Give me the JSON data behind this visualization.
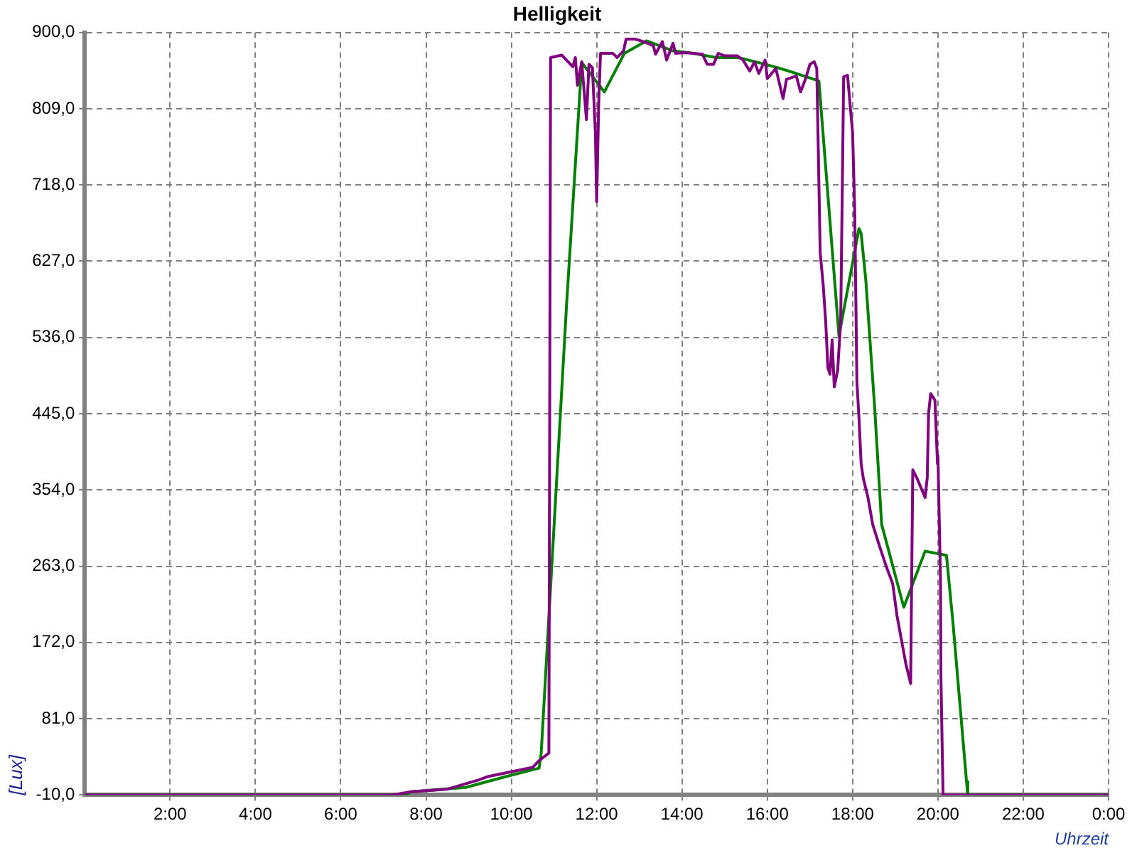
{
  "chart_data": {
    "type": "line",
    "title": "Helligkeit",
    "xlabel": "Uhrzeit",
    "ylabel": "[Lux]",
    "xlim": [
      0,
      24
    ],
    "xticks": [
      {
        "value": 2,
        "label": "2:00"
      },
      {
        "value": 4,
        "label": "4:00"
      },
      {
        "value": 6,
        "label": "6:00"
      },
      {
        "value": 8,
        "label": "8:00"
      },
      {
        "value": 10,
        "label": "10:00"
      },
      {
        "value": 12,
        "label": "12:00"
      },
      {
        "value": 14,
        "label": "14:00"
      },
      {
        "value": 16,
        "label": "16:00"
      },
      {
        "value": 18,
        "label": "18:00"
      },
      {
        "value": 20,
        "label": "20:00"
      },
      {
        "value": 22,
        "label": "22:00"
      },
      {
        "value": 24,
        "label": "0:00"
      }
    ],
    "ylim": [
      -10,
      900
    ],
    "yticks": [
      {
        "value": -10,
        "label": "-10,0"
      },
      {
        "value": 81,
        "label": "81,0"
      },
      {
        "value": 172,
        "label": "172,0"
      },
      {
        "value": 263,
        "label": "263,0"
      },
      {
        "value": 354,
        "label": "354,0"
      },
      {
        "value": 445,
        "label": "445,0"
      },
      {
        "value": 536,
        "label": "536,0"
      },
      {
        "value": 627,
        "label": "627,0"
      },
      {
        "value": 718,
        "label": "718,0"
      },
      {
        "value": 809,
        "label": "809,0"
      },
      {
        "value": 900,
        "label": "900,0"
      }
    ],
    "grid": true,
    "legend": false,
    "marker": "none",
    "line_style": "solid",
    "series": [
      {
        "color": "#800080",
        "x": [
          0,
          7.2,
          7.66,
          8.5,
          9.24,
          9.45,
          10.5,
          10.65,
          10.88,
          10.92,
          11.18,
          11.44,
          11.5,
          11.55,
          11.65,
          11.76,
          11.82,
          11.9,
          11.97,
          12.0,
          12.05,
          12.09,
          12.38,
          12.48,
          12.63,
          12.69,
          12.9,
          13.1,
          13.33,
          13.38,
          13.54,
          13.64,
          13.79,
          13.85,
          14.06,
          14.48,
          14.59,
          14.74,
          14.85,
          15.0,
          15.3,
          15.43,
          15.59,
          15.7,
          15.8,
          15.95,
          16.0,
          16.2,
          16.37,
          16.45,
          16.68,
          16.78,
          16.9,
          17.0,
          17.1,
          17.16,
          17.24,
          17.31,
          17.37,
          17.42,
          17.47,
          17.52,
          17.57,
          17.65,
          17.72,
          17.79,
          17.88,
          18.0,
          18.05,
          18.1,
          18.15,
          18.2,
          18.25,
          18.36,
          18.47,
          18.63,
          18.78,
          18.94,
          19.04,
          19.25,
          19.36,
          19.41,
          19.5,
          19.7,
          19.75,
          19.78,
          19.83,
          19.93,
          19.99,
          20.0,
          20.06,
          20.07,
          20.12,
          24
        ],
        "values": [
          -10,
          -10,
          -6,
          -3,
          8,
          12,
          23,
          31,
          40,
          870,
          873,
          859,
          870,
          837,
          865,
          796,
          862,
          858,
          780,
          698,
          818,
          875,
          875,
          870,
          878,
          892,
          892,
          889,
          884,
          874,
          889,
          867,
          887,
          875,
          876,
          874,
          862,
          862,
          875,
          872,
          872,
          867,
          854,
          865,
          851,
          867,
          845,
          857,
          821,
          844,
          848,
          829,
          845,
          862,
          865,
          857,
          637,
          599,
          554,
          500,
          492,
          533,
          477,
          497,
          555,
          847,
          849,
          780,
          686,
          484,
          439,
          385,
          368,
          345,
          313,
          287,
          264,
          242,
          204,
          146,
          123,
          378,
          369,
          345,
          369,
          445,
          469,
          461,
          385,
          395,
          247,
          132,
          -10,
          -10
        ]
      },
      {
        "color": "#008000",
        "x": [
          0,
          7.5,
          7.66,
          8.93,
          9.87,
          10.65,
          10.7,
          11.29,
          11.65,
          12.18,
          12.65,
          13.17,
          13.79,
          14.27,
          14.8,
          15.32,
          15.95,
          16.37,
          16.68,
          17.21,
          17.68,
          18.15,
          18.2,
          18.31,
          18.52,
          18.68,
          19.2,
          19.7,
          20.2,
          20.35,
          20.67,
          20.7,
          24
        ],
        "values": [
          -10,
          -10,
          -6,
          -1,
          12,
          22,
          40,
          571,
          864,
          829,
          875,
          890,
          878,
          875,
          870,
          870,
          862,
          856,
          851,
          842,
          538,
          666,
          660,
          604,
          450,
          313,
          214,
          281,
          276,
          197,
          6,
          -10,
          -10
        ]
      }
    ]
  }
}
